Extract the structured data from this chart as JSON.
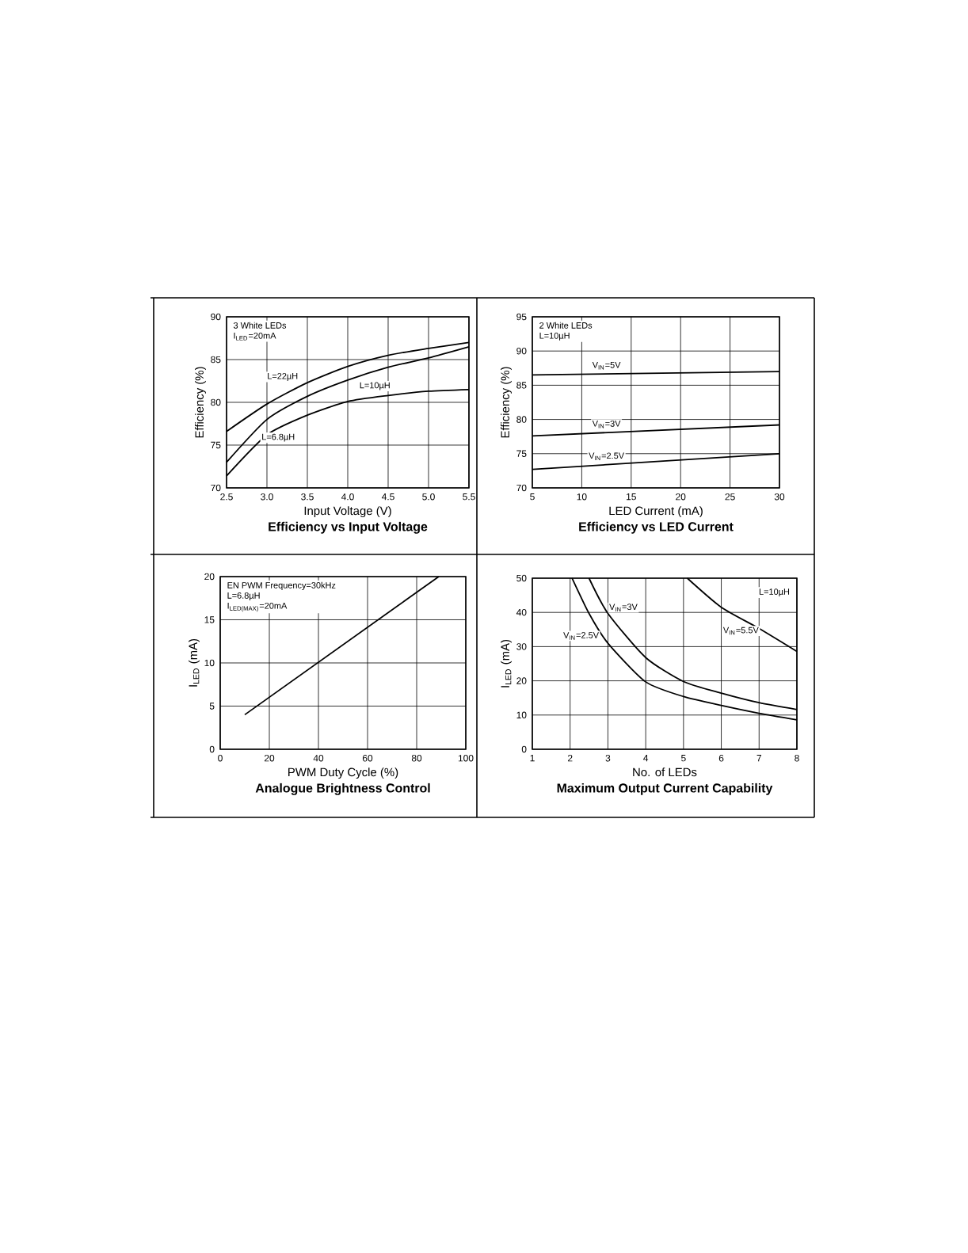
{
  "chart_data": [
    {
      "type": "line",
      "title": "Efficiency vs Input Voltage",
      "xlabel": "Input Voltage (V)",
      "ylabel": "Efficiency (%)",
      "annotations": [
        "3 White LEDs",
        "I$_{LED}$=20mA"
      ],
      "x": [
        2.5,
        3.0,
        3.5,
        4.0,
        4.5,
        5.0,
        5.5
      ],
      "series": [
        {
          "name": "L=22µH",
          "color": "#000000",
          "values": [
            76.6,
            79.8,
            82.3,
            84.2,
            85.5,
            86.3,
            87.0
          ]
        },
        {
          "name": "L=10µH",
          "color": "#000000",
          "values": [
            73.0,
            78.0,
            80.7,
            82.6,
            84.1,
            85.2,
            86.5
          ]
        },
        {
          "name": "L=6.8µH",
          "color": "#000000",
          "values": [
            71.4,
            76.2,
            78.5,
            80.1,
            80.8,
            81.3,
            81.5
          ]
        }
      ],
      "xlim": [
        2.5,
        5.5
      ],
      "ylim": [
        70,
        90
      ],
      "xticks": [
        2.5,
        {
          "value": 3,
          "label": "3.0"
        },
        3.5,
        {
          "value": 4,
          "label": "4.0"
        },
        4.5,
        {
          "value": 5,
          "label": "5.0"
        },
        5.5
      ],
      "yticks": [
        70,
        75,
        80,
        85,
        90
      ],
      "grid": true,
      "line_style": "solid"
    },
    {
      "type": "line",
      "title": "Efficiency vs LED Current",
      "xlabel": "LED Current (mA)",
      "ylabel": "Efficiency (%)",
      "annotations": [
        "2 White LEDs",
        "L=10µH"
      ],
      "x": [
        5,
        30
      ],
      "series": [
        {
          "name": "V$_{IN}$=5V",
          "color": "#000000",
          "values": [
            86.5,
            87.0
          ]
        },
        {
          "name": "V$_{IN}$=3V",
          "color": "#000000",
          "values": [
            77.6,
            79.2
          ]
        },
        {
          "name": "V$_{IN}$=2.5V",
          "color": "#000000",
          "values": [
            72.7,
            75.0
          ]
        }
      ],
      "xlim": [
        5,
        30
      ],
      "ylim": [
        70,
        95
      ],
      "xticks": [
        5,
        10,
        15,
        20,
        25,
        30
      ],
      "yticks": [
        70,
        75,
        80,
        85,
        90,
        95
      ],
      "grid": true,
      "line_style": "solid"
    },
    {
      "type": "line",
      "title": "Analogue Brightness Control",
      "xlabel": "PWM Duty Cycle (%)",
      "ylabel": "I$_{LED}$ (mA)",
      "annotations": [
        "EN PWM Frequency=30kHz",
        "L=6.8µH",
        "I$_{LED(MAX)}$=20mA"
      ],
      "x": [
        10,
        89
      ],
      "series": [
        {
          "color": "#000000",
          "values": [
            4,
            20
          ]
        }
      ],
      "xlim": [
        0,
        100
      ],
      "ylim": [
        0,
        20
      ],
      "xticks": [
        0,
        20,
        40,
        60,
        80,
        100
      ],
      "yticks": [
        0,
        5,
        10,
        15,
        20
      ],
      "grid": true,
      "line_style": "solid"
    },
    {
      "type": "line",
      "title": "Maximum Output Current Capability",
      "xlabel": "No. of LEDs",
      "ylabel": "I$_{LED}$ (mA)",
      "annotations": [
        "L=10µH"
      ],
      "series": [
        {
          "name": "V$_{IN}$=2.5V",
          "color": "#000000",
          "x": [
            2.05,
            2.5,
            3,
            4,
            5,
            6,
            7,
            8
          ],
          "values": [
            50,
            39.7,
            31,
            19.7,
            15.4,
            12.8,
            10.5,
            8.6
          ]
        },
        {
          "name": "V$_{IN}$=3V",
          "color": "#000000",
          "x": [
            2.5,
            3,
            4,
            5,
            6,
            7,
            8
          ],
          "values": [
            50,
            39.7,
            26.8,
            19.8,
            16.4,
            13.6,
            11.6
          ]
        },
        {
          "name": "V$_{IN}$=5.5V",
          "color": "#000000",
          "x": [
            5.1,
            6,
            7,
            8
          ],
          "values": [
            50,
            41.5,
            35.3,
            28.6
          ]
        }
      ],
      "xlim": [
        1,
        8
      ],
      "ylim": [
        0,
        50
      ],
      "xticks": [
        1,
        2,
        3,
        4,
        5,
        6,
        7,
        8
      ],
      "yticks": [
        0,
        10,
        20,
        30,
        40,
        50
      ],
      "grid": true,
      "line_style": "solid"
    }
  ]
}
